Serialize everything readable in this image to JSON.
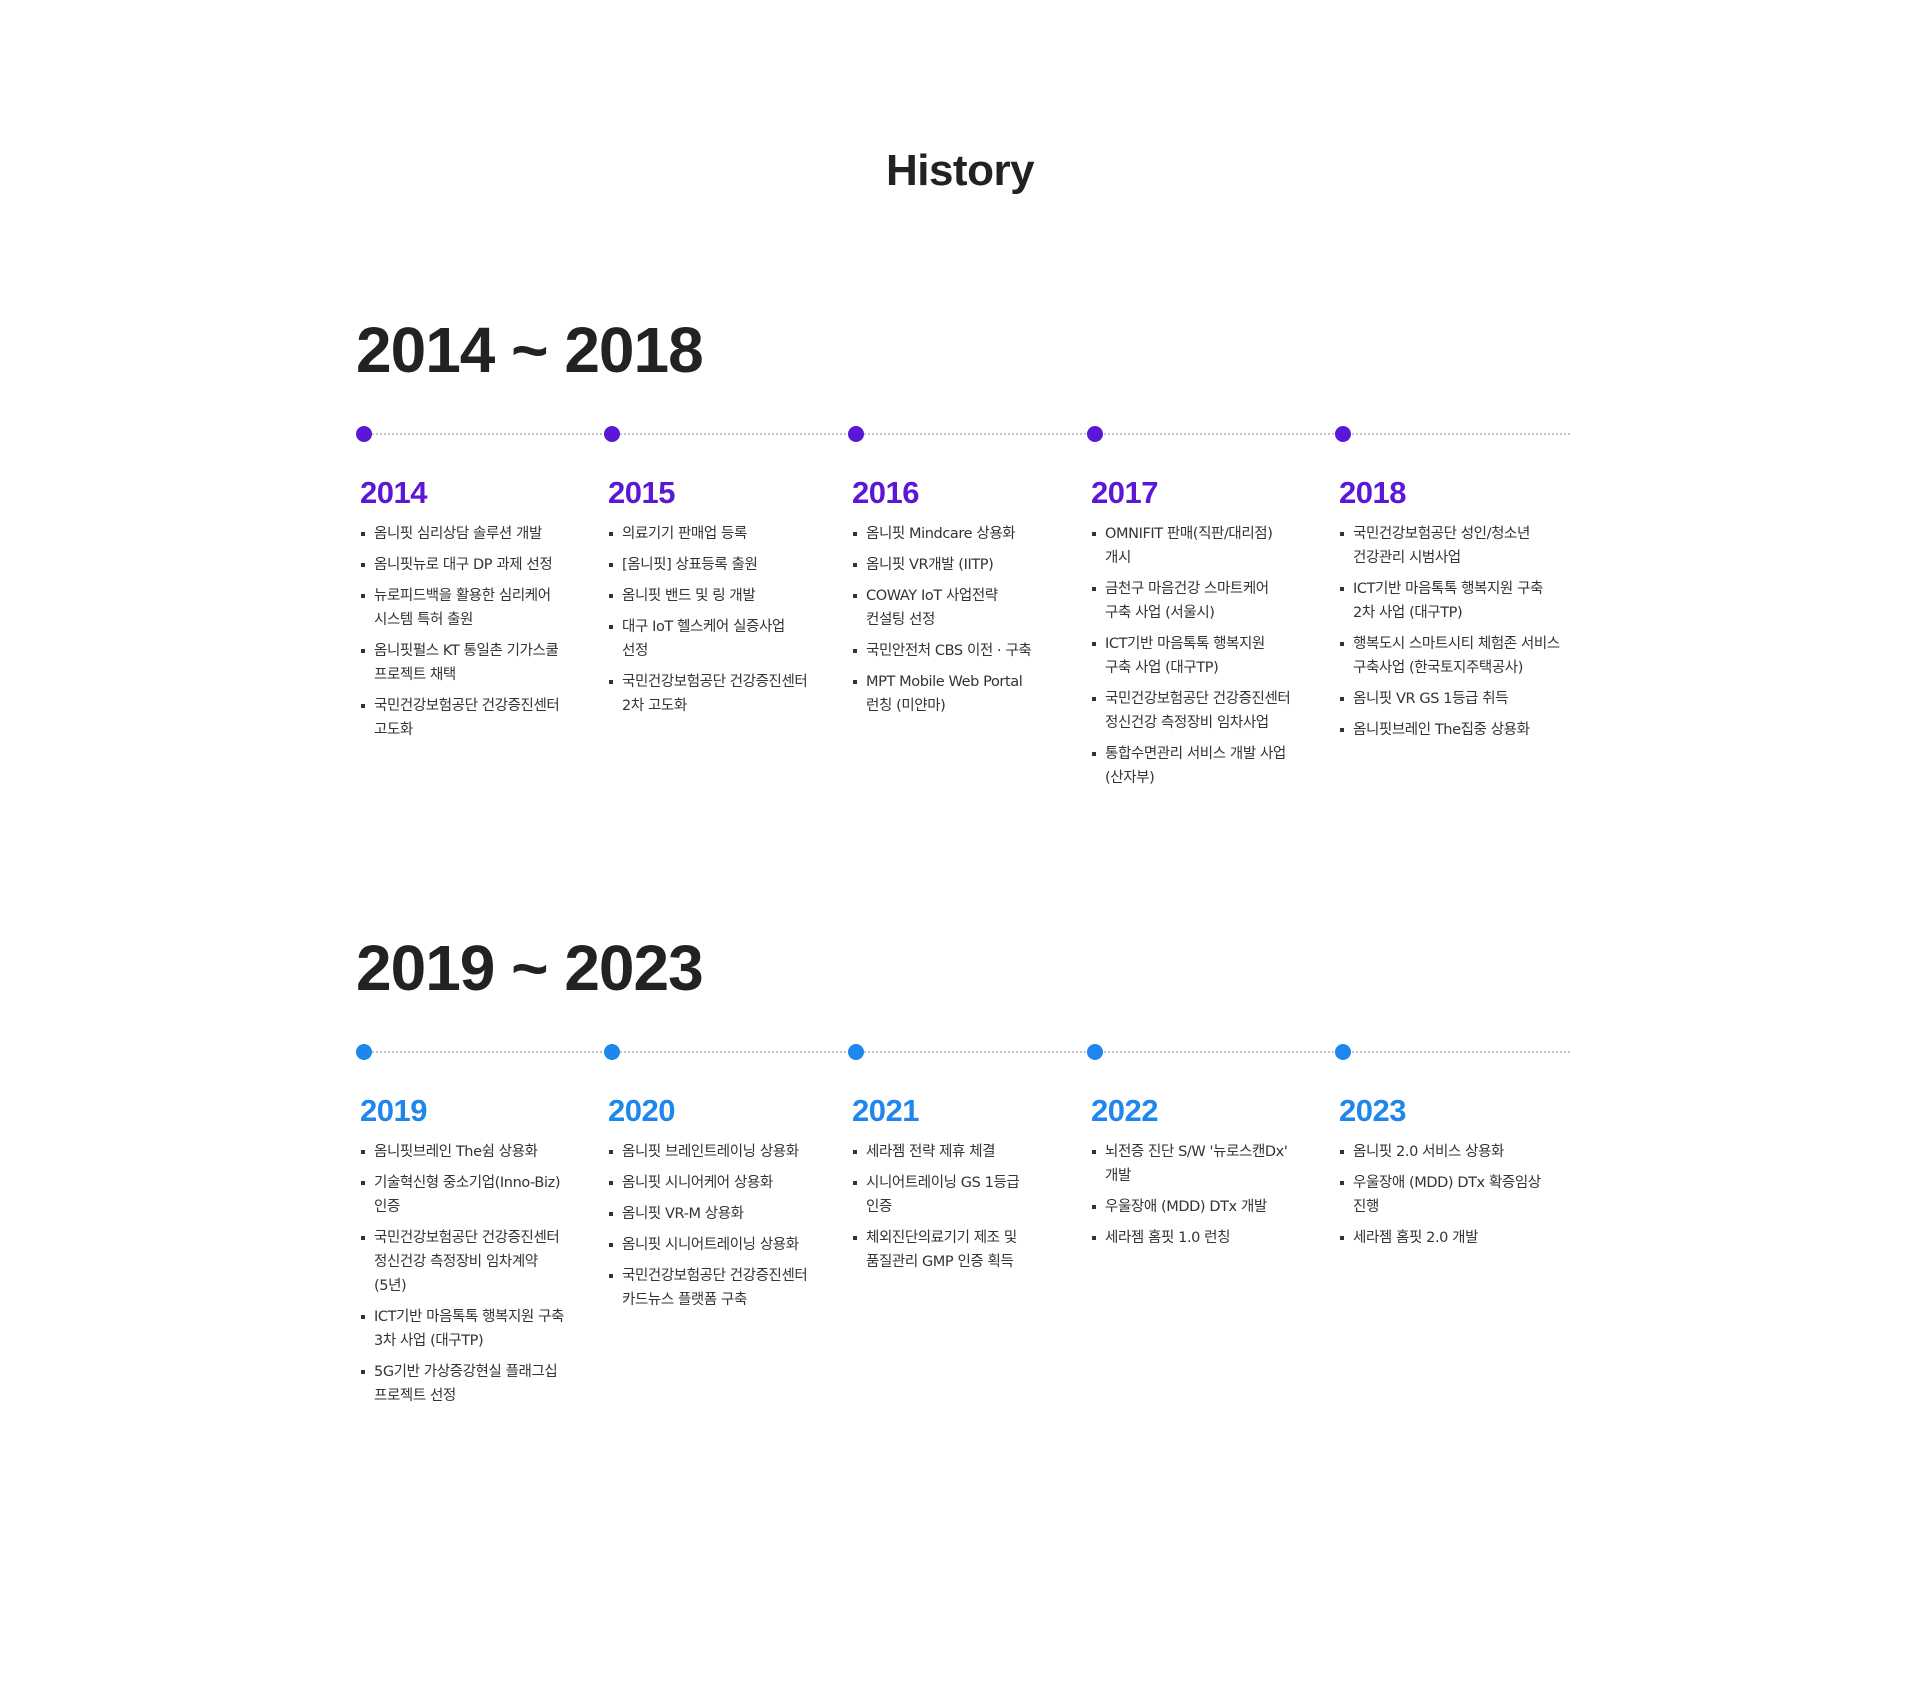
{
  "title": "History",
  "colors": {
    "era1_accent": "#5b17d6",
    "era2_accent": "#1e86ec",
    "heading_text": "#222222",
    "body_text": "#333333",
    "timeline_dots": "#c4c4c4"
  },
  "eras": [
    {
      "heading": "2014 ~ 2018",
      "years": [
        {
          "year": "2014",
          "items": [
            [
              "옴니핏 심리상담 솔루션 개발"
            ],
            [
              "옴니핏뉴로 대구 DP 과제 선정"
            ],
            [
              "뉴로피드백을 활용한 심리케어",
              "시스템 특허 출원"
            ],
            [
              "옴니핏펄스 KT 통일촌 기가스쿨",
              "프로젝트 채택"
            ],
            [
              "국민건강보험공단 건강증진센터",
              "고도화"
            ]
          ]
        },
        {
          "year": "2015",
          "items": [
            [
              "의료기기 판매업 등록"
            ],
            [
              "[옴니핏] 상표등록 출원"
            ],
            [
              "옴니핏 밴드 및 링 개발"
            ],
            [
              "대구 IoT 헬스케어 실증사업",
              "선정"
            ],
            [
              "국민건강보험공단 건강증진센터",
              "2차 고도화"
            ]
          ]
        },
        {
          "year": "2016",
          "items": [
            [
              "옴니핏 Mindcare 상용화"
            ],
            [
              "옴니핏 VR개발 (IITP)"
            ],
            [
              "COWAY IoT 사업전략",
              "컨설팅 선정"
            ],
            [
              "국민안전처 CBS 이전 · 구축"
            ],
            [
              "MPT Mobile Web Portal",
              "런칭 (미얀마)"
            ]
          ]
        },
        {
          "year": "2017",
          "items": [
            [
              "OMNIFIT 판매(직판/대리점)",
              "개시"
            ],
            [
              "금천구 마음건강 스마트케어",
              "구축 사업 (서울시)"
            ],
            [
              "ICT기반 마음톡톡 행복지원",
              "구축 사업 (대구TP)"
            ],
            [
              "국민건강보험공단 건강증진센터",
              "정신건강 측정장비 임차사업"
            ],
            [
              "통합수면관리 서비스 개발 사업",
              "(산자부)"
            ]
          ]
        },
        {
          "year": "2018",
          "items": [
            [
              "국민건강보험공단  성인/청소년",
              "건강관리 시범사업"
            ],
            [
              "ICT기반 마음톡톡 행복지원 구축",
              "2차 사업 (대구TP)"
            ],
            [
              "행복도시 스마트시티 체험존 서비스",
              "구축사업 (한국토지주택공사)"
            ],
            [
              "옴니핏 VR GS 1등급 취득"
            ],
            [
              "옴니핏브레인 The집중 상용화"
            ]
          ]
        }
      ]
    },
    {
      "heading": "2019 ~ 2023",
      "years": [
        {
          "year": "2019",
          "items": [
            [
              "옴니핏브레인 The쉼 상용화"
            ],
            [
              "기술혁신형 중소기업(Inno-Biz)",
              "인증"
            ],
            [
              "국민건강보험공단 건강증진센터",
              "정신건강 측정장비 임차계약",
              "(5년)"
            ],
            [
              "ICT기반 마음톡톡 행복지원 구축",
              "3차 사업 (대구TP)"
            ],
            [
              "5G기반 가상증강현실 플래그십",
              "프로젝트 선정"
            ]
          ]
        },
        {
          "year": "2020",
          "items": [
            [
              "옴니핏 브레인트레이닝 상용화"
            ],
            [
              "옴니핏 시니어케어 상용화"
            ],
            [
              "옴니핏  VR-M 상용화"
            ],
            [
              "옴니핏 시니어트레이닝 상용화"
            ],
            [
              "국민건강보험공단 건강증진센터",
              "카드뉴스 플랫폼 구축"
            ]
          ]
        },
        {
          "year": "2021",
          "items": [
            [
              "세라젬 전략 제휴 체결"
            ],
            [
              "시니어트레이닝 GS 1등급",
              "인증"
            ],
            [
              "체외진단의료기기 제조 및",
              "품질관리 GMP 인증 획득"
            ]
          ]
        },
        {
          "year": "2022",
          "items": [
            [
              "뇌전증 진단 S/W '뉴로스캔Dx'",
              "개발"
            ],
            [
              "우울장애 (MDD) DTx 개발"
            ],
            [
              "세라젬 홈핏 1.0 런칭"
            ]
          ]
        },
        {
          "year": "2023",
          "items": [
            [
              "옴니핏 2.0 서비스 상용화"
            ],
            [
              "우울장애 (MDD) DTx 확증임상",
              "진행"
            ],
            [
              "세라젬 홈핏 2.0 개발"
            ]
          ]
        }
      ]
    }
  ]
}
